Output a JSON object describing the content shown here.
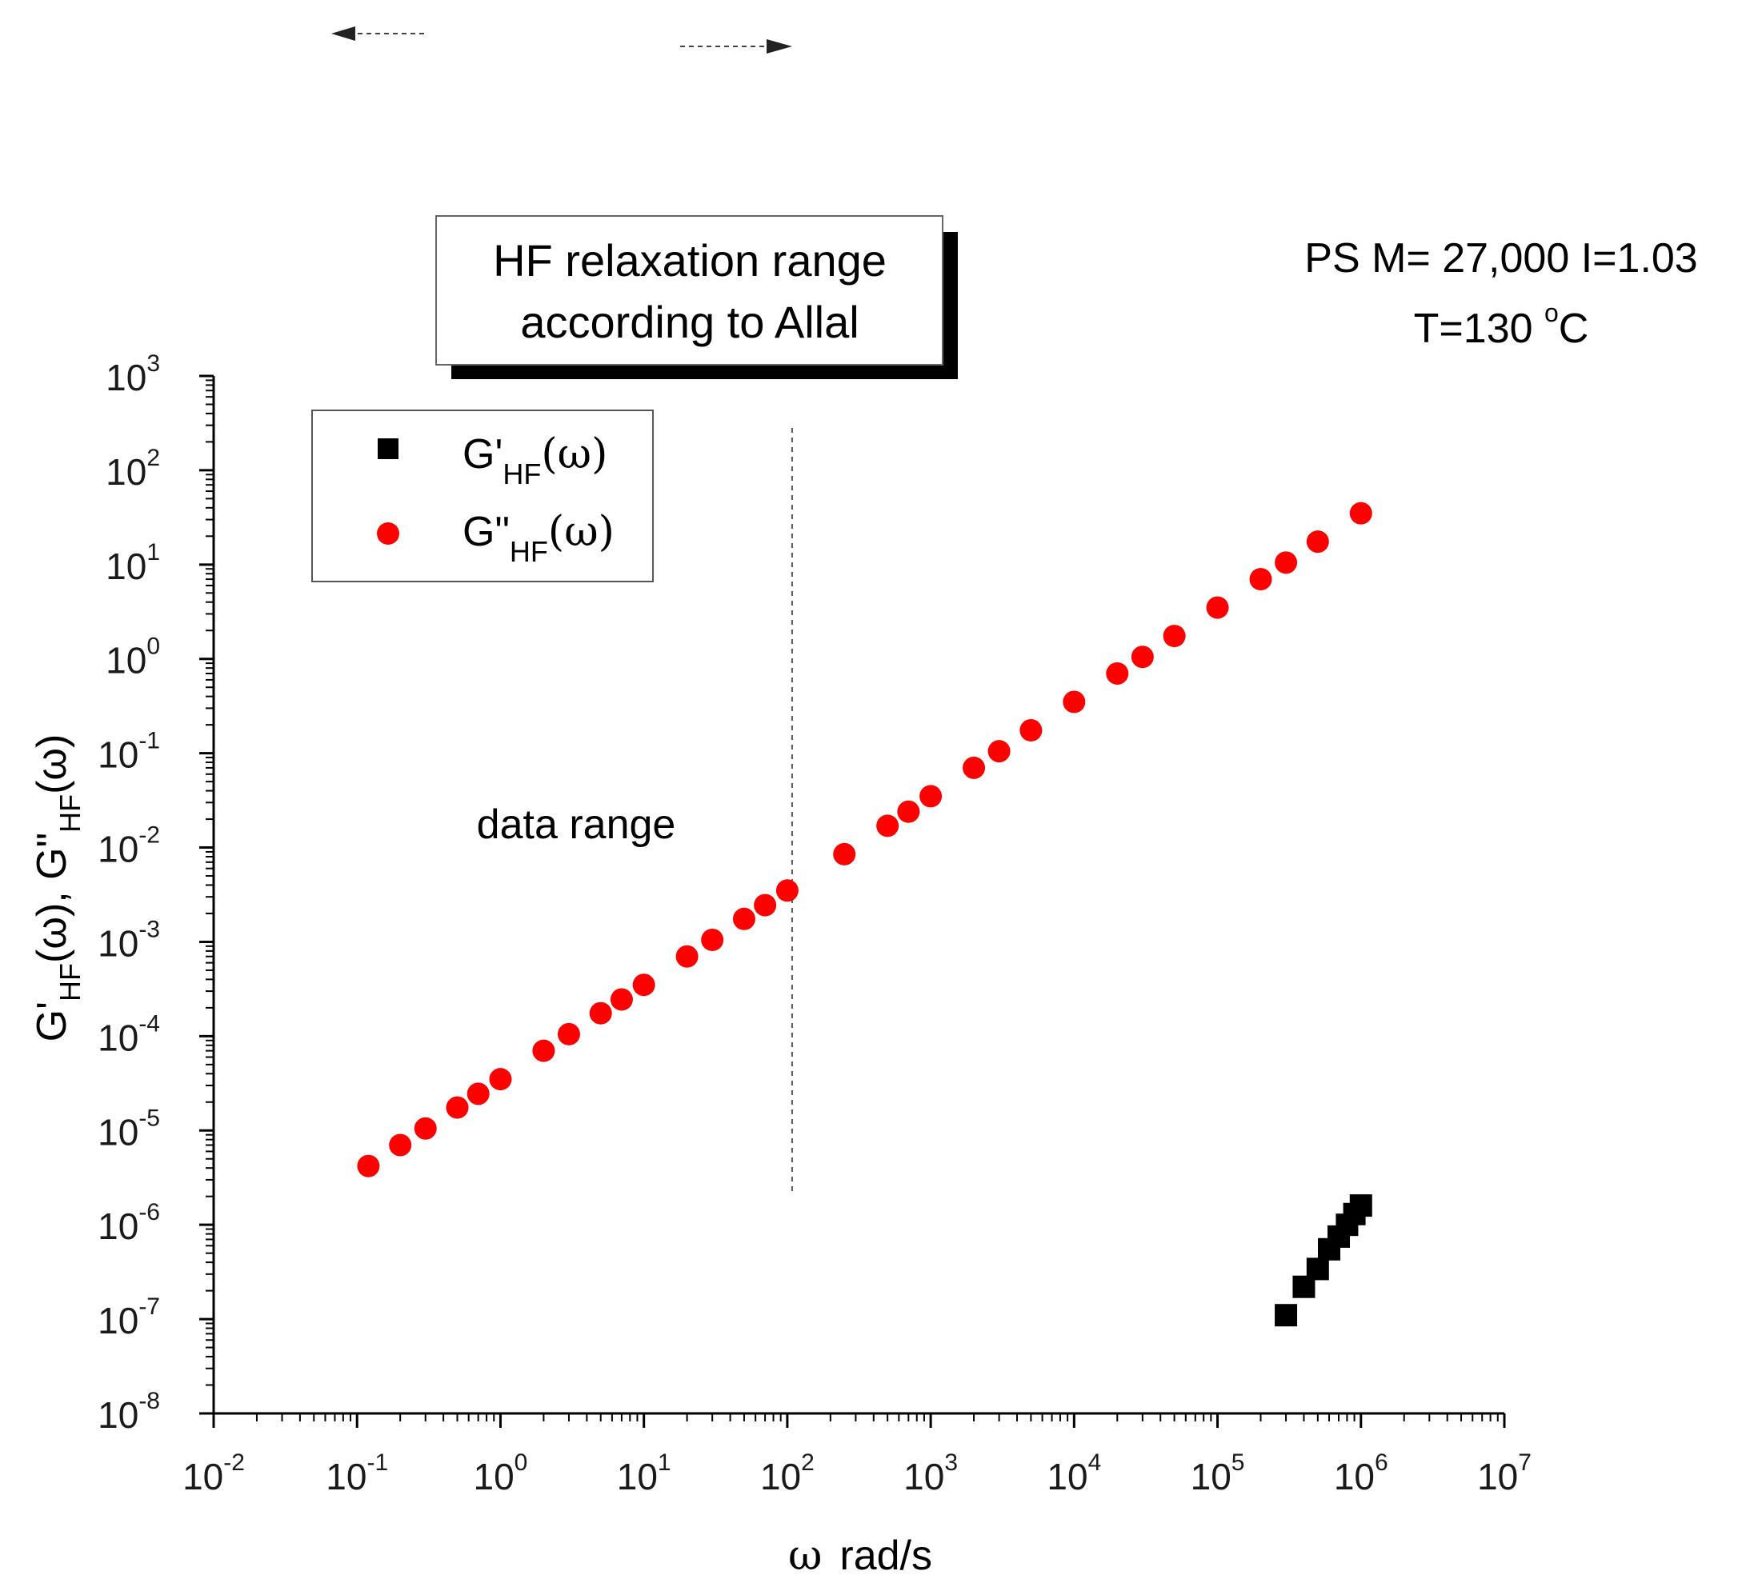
{
  "chart_data": {
    "type": "scatter",
    "title": "",
    "xscale": "log",
    "yscale": "log",
    "xlim": [
      0.01,
      10000000
    ],
    "ylim": [
      1e-08,
      1000
    ],
    "x_tick_exponents": [
      "-2",
      "-1",
      "0",
      "1",
      "2",
      "3",
      "4",
      "5",
      "6",
      "7"
    ],
    "y_tick_exponents": [
      "-8",
      "-7",
      "-6",
      "-5",
      "-4",
      "-3",
      "-2",
      "-1",
      "0",
      "1",
      "2",
      "3"
    ],
    "tick_base": "10",
    "xlabel": {
      "symbol": "ω",
      "unit": "rad/s"
    },
    "ylabel": {
      "p1": "G'",
      "p1_sub": "HF",
      "p2": "(ω), G\"",
      "p2_sub": "HF",
      "p3": "(ω)"
    },
    "legend": {
      "position": "top-left",
      "entries": [
        {
          "main": "G'",
          "sub": "HF",
          "suffix": "(ω)",
          "marker": "square",
          "color": "#000000"
        },
        {
          "main": "G\"",
          "sub": "HF",
          "suffix": "(ω)",
          "marker": "circle",
          "color": "#ff0000"
        }
      ]
    },
    "annotations": {
      "box_line1": "HF relaxation range",
      "box_line2": "according to Allal",
      "sample_line1": "PS M= 27,000 I=1.03",
      "sample_line2_prefix": "T=130 ",
      "sample_line2_sup": "o",
      "sample_line2_suffix": "C",
      "data_range": "data range",
      "data_range_boundary_x": 100
    },
    "series": [
      {
        "name": "G'HF(ω)",
        "marker": "square",
        "color": "#000000",
        "points": [
          [
            300000,
            1.1e-07
          ],
          [
            400000,
            2.2e-07
          ],
          [
            500000,
            3.4e-07
          ],
          [
            600000,
            5.5e-07
          ],
          [
            700000,
            7.5e-07
          ],
          [
            800000,
            1e-06
          ],
          [
            900000,
            1.3e-06
          ],
          [
            1000000,
            1.6e-06
          ]
        ]
      },
      {
        "name": "G\"HF(ω)",
        "marker": "circle",
        "color": "#ff0000",
        "slope": 1.0,
        "points": [
          [
            0.12,
            4.2e-06
          ],
          [
            0.2,
            7e-06
          ],
          [
            0.3,
            1.05e-05
          ],
          [
            0.5,
            1.75e-05
          ],
          [
            0.7,
            2.45e-05
          ],
          [
            1,
            3.5e-05
          ],
          [
            2,
            7e-05
          ],
          [
            3,
            0.000105
          ],
          [
            5,
            0.000175
          ],
          [
            7,
            0.000245
          ],
          [
            10,
            0.00035
          ],
          [
            20,
            0.0007
          ],
          [
            30,
            0.00105
          ],
          [
            50,
            0.00175
          ],
          [
            70,
            0.00245
          ],
          [
            100,
            0.0035
          ],
          [
            250,
            0.0085
          ],
          [
            500,
            0.017
          ],
          [
            700,
            0.024
          ],
          [
            1000,
            0.035
          ],
          [
            2000,
            0.07
          ],
          [
            3000,
            0.105
          ],
          [
            5000,
            0.175
          ],
          [
            10000,
            0.35
          ],
          [
            20000,
            0.7
          ],
          [
            30000,
            1.05
          ],
          [
            50000,
            1.75
          ],
          [
            100000,
            3.5
          ],
          [
            200000,
            7.0
          ],
          [
            300000,
            10.5
          ],
          [
            500000,
            17.5
          ],
          [
            1000000,
            35
          ]
        ]
      }
    ]
  }
}
